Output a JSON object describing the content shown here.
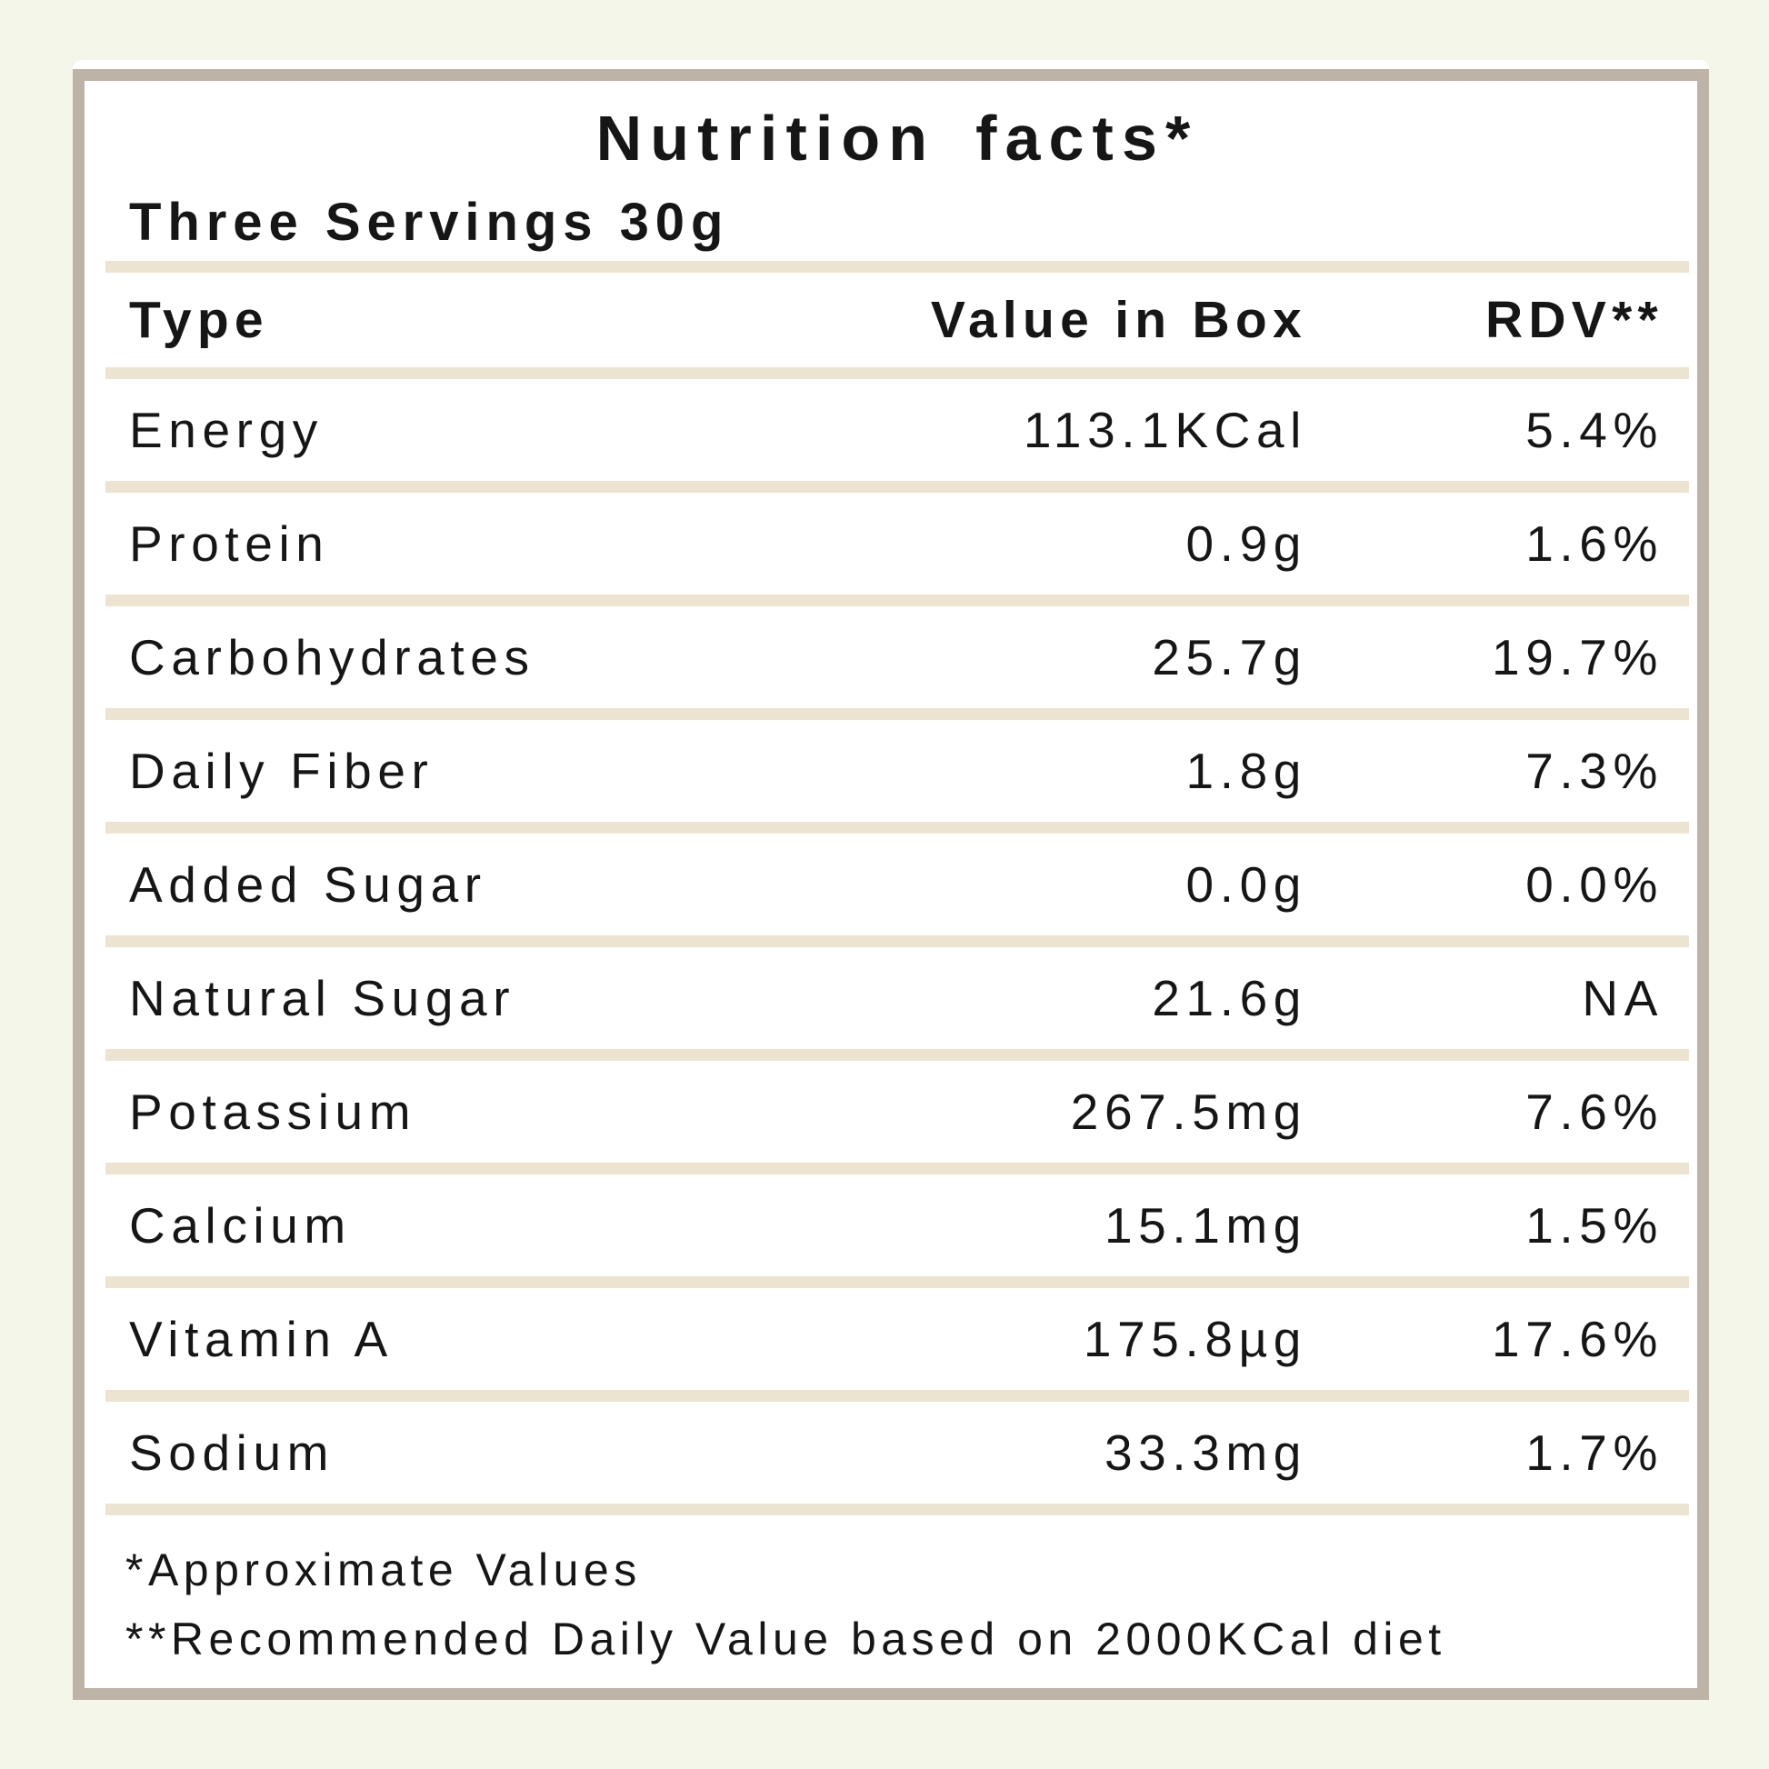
{
  "colors": {
    "page_background": "#f4f6e9",
    "card_background": "#ffffff",
    "frame_border": "#bdb3a7",
    "divider": "#ece3d1",
    "text": "#161616"
  },
  "label": {
    "title": "Nutrition facts*",
    "subtitle": "Three Servings 30g",
    "columns": {
      "type": "Type",
      "value": "Value in Box",
      "rdv": "RDV**"
    },
    "rows": [
      {
        "type": "Energy",
        "value": "113.1KCal",
        "rdv": "5.4%"
      },
      {
        "type": "Protein",
        "value": "0.9g",
        "rdv": "1.6%"
      },
      {
        "type": "Carbohydrates",
        "value": "25.7g",
        "rdv": "19.7%"
      },
      {
        "type": "Daily Fiber",
        "value": "1.8g",
        "rdv": "7.3%"
      },
      {
        "type": "Added Sugar",
        "value": "0.0g",
        "rdv": "0.0%"
      },
      {
        "type": "Natural Sugar",
        "value": "21.6g",
        "rdv": "NA"
      },
      {
        "type": "Potassium",
        "value": "267.5mg",
        "rdv": "7.6%"
      },
      {
        "type": "Calcium",
        "value": "15.1mg",
        "rdv": "1.5%"
      },
      {
        "type": "Vitamin A",
        "value": "175.8µg",
        "rdv": "17.6%"
      },
      {
        "type": "Sodium",
        "value": "33.3mg",
        "rdv": "1.7%"
      }
    ],
    "footnotes": {
      "approximate": "*Approximate Values",
      "rdv_basis": "**Recommended Daily Value based on 2000KCal diet"
    }
  }
}
